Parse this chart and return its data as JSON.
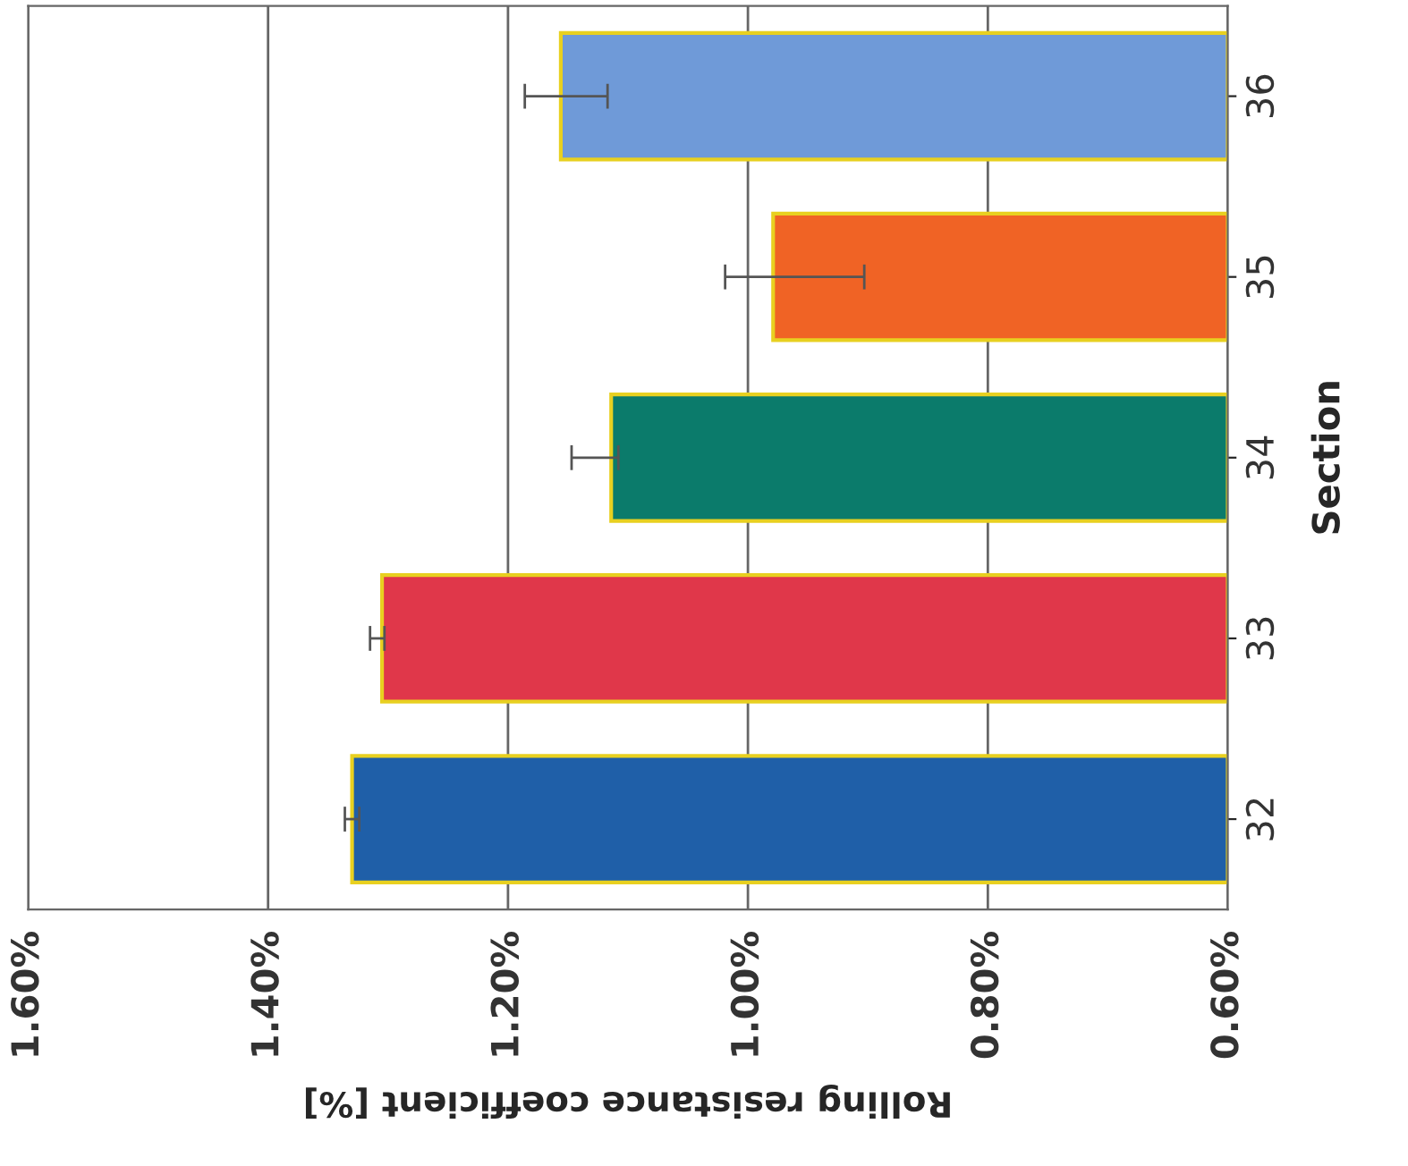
{
  "chart_data": {
    "type": "bar",
    "orientation": "horizontal",
    "xlabel": "Rolling resistance coefficient [%]",
    "ylabel": "Section",
    "categories": [
      "36",
      "35",
      "34",
      "33",
      "32"
    ],
    "values": [
      1.156,
      0.979,
      1.114,
      1.305,
      1.33
    ],
    "colors": [
      "#6f9ad8",
      "#f06325",
      "#0b7b6b",
      "#e0374a",
      "#1f5fa8"
    ],
    "errors": [
      [
        1.117,
        1.186
      ],
      [
        0.903,
        1.019
      ],
      [
        1.108,
        1.147
      ],
      [
        1.303,
        1.315
      ],
      [
        1.324,
        1.336
      ]
    ],
    "xlim": [
      1.6,
      0.6
    ],
    "xticks": [
      {
        "value": 1.6,
        "label": "1.60%"
      },
      {
        "value": 1.4,
        "label": "1.40%"
      },
      {
        "value": 1.2,
        "label": "1.20%"
      },
      {
        "value": 1.0,
        "label": "1.00%"
      },
      {
        "value": 0.8,
        "label": "0.80%"
      },
      {
        "value": 0.6,
        "label": "0.60%"
      }
    ],
    "grid": "x",
    "legend": false
  }
}
